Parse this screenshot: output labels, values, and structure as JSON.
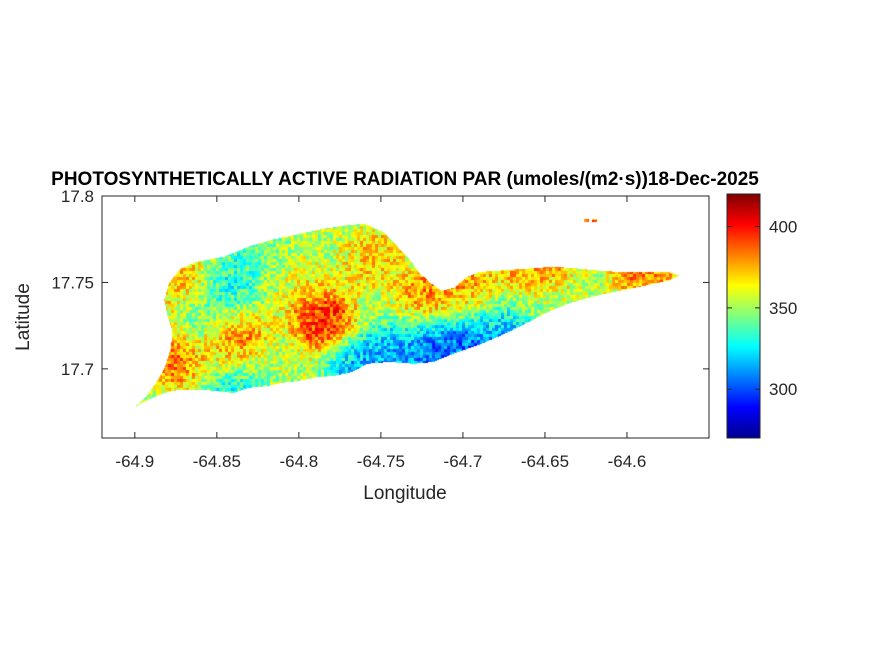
{
  "chart_data": {
    "type": "heatmap",
    "title": "PHOTOSYNTHETICALLY ACTIVE RADIATION PAR (umoles/(m2·s))18-Dec-2025",
    "xlabel": "Longitude",
    "ylabel": "Latitude",
    "xlim": [
      -64.92,
      -64.55
    ],
    "ylim": [
      17.66,
      17.8
    ],
    "xticks": [
      -64.9,
      -64.85,
      -64.8,
      -64.75,
      -64.7,
      -64.65,
      -64.6
    ],
    "xtick_labels": [
      "-64.9",
      "-64.85",
      "-64.8",
      "-64.75",
      "-64.7",
      "-64.65",
      "-64.6"
    ],
    "yticks": [
      17.7,
      17.75,
      17.8
    ],
    "ytick_labels": [
      "17.7",
      "17.75",
      "17.8"
    ],
    "colorbar": {
      "colormap": "jet",
      "range": [
        270,
        420
      ],
      "ticks": [
        300,
        350,
        400
      ],
      "tick_labels": [
        "300",
        "350",
        "400"
      ]
    },
    "island_outline": [
      [
        -64.9,
        17.678
      ],
      [
        -64.893,
        17.684
      ],
      [
        -64.887,
        17.692
      ],
      [
        -64.882,
        17.7
      ],
      [
        -64.878,
        17.712
      ],
      [
        -64.877,
        17.722
      ],
      [
        -64.88,
        17.73
      ],
      [
        -64.882,
        17.74
      ],
      [
        -64.879,
        17.75
      ],
      [
        -64.872,
        17.758
      ],
      [
        -64.862,
        17.762
      ],
      [
        -64.845,
        17.765
      ],
      [
        -64.83,
        17.771
      ],
      [
        -64.815,
        17.775
      ],
      [
        -64.8,
        17.778
      ],
      [
        -64.785,
        17.781
      ],
      [
        -64.772,
        17.783
      ],
      [
        -64.76,
        17.784
      ],
      [
        -64.748,
        17.779
      ],
      [
        -64.74,
        17.771
      ],
      [
        -64.733,
        17.764
      ],
      [
        -64.727,
        17.756
      ],
      [
        -64.72,
        17.75
      ],
      [
        -64.713,
        17.745
      ],
      [
        -64.705,
        17.747
      ],
      [
        -64.698,
        17.753
      ],
      [
        -64.69,
        17.756
      ],
      [
        -64.675,
        17.757
      ],
      [
        -64.66,
        17.758
      ],
      [
        -64.645,
        17.759
      ],
      [
        -64.63,
        17.758
      ],
      [
        -64.62,
        17.757
      ],
      [
        -64.605,
        17.756
      ],
      [
        -64.59,
        17.756
      ],
      [
        -64.575,
        17.756
      ],
      [
        -64.568,
        17.754
      ],
      [
        -64.575,
        17.751
      ],
      [
        -64.59,
        17.748
      ],
      [
        -64.605,
        17.745
      ],
      [
        -64.62,
        17.742
      ],
      [
        -64.635,
        17.738
      ],
      [
        -64.648,
        17.733
      ],
      [
        -64.66,
        17.727
      ],
      [
        -64.675,
        17.72
      ],
      [
        -64.69,
        17.714
      ],
      [
        -64.705,
        17.709
      ],
      [
        -64.718,
        17.704
      ],
      [
        -64.73,
        17.703
      ],
      [
        -64.745,
        17.704
      ],
      [
        -64.758,
        17.703
      ],
      [
        -64.768,
        17.698
      ],
      [
        -64.778,
        17.696
      ],
      [
        -64.79,
        17.695
      ],
      [
        -64.8,
        17.693
      ],
      [
        -64.81,
        17.692
      ],
      [
        -64.82,
        17.69
      ],
      [
        -64.83,
        17.689
      ],
      [
        -64.84,
        17.686
      ],
      [
        -64.85,
        17.687
      ],
      [
        -64.86,
        17.688
      ],
      [
        -64.872,
        17.688
      ],
      [
        -64.882,
        17.686
      ],
      [
        -64.892,
        17.682
      ]
    ],
    "island_pixels": [
      [
        -64.9,
        17.678
      ],
      [
        -64.895,
        17.681
      ],
      [
        -64.89,
        17.685
      ]
    ],
    "cays": [
      [
        -64.625,
        17.786
      ],
      [
        -64.62,
        17.786
      ]
    ],
    "hotspots": [
      {
        "lon": -64.785,
        "lat": 17.727,
        "value": 410
      },
      {
        "lon": -64.842,
        "lat": 17.718,
        "value": 405
      },
      {
        "lon": -64.876,
        "lat": 17.708,
        "value": 400
      },
      {
        "lon": -64.72,
        "lat": 17.74,
        "value": 395
      },
      {
        "lon": -64.655,
        "lat": 17.755,
        "value": 395
      },
      {
        "lon": -64.59,
        "lat": 17.756,
        "value": 392
      },
      {
        "lon": -64.695,
        "lat": 17.743,
        "value": 385
      },
      {
        "lon": -64.873,
        "lat": 17.75,
        "value": 385
      },
      {
        "lon": -64.755,
        "lat": 17.765,
        "value": 375
      },
      {
        "lon": -64.81,
        "lat": 17.752,
        "value": 370
      },
      {
        "lon": -64.62,
        "lat": 17.787,
        "value": 395
      }
    ],
    "coldspots": [
      {
        "lon": -64.7,
        "lat": 17.717,
        "value": 285
      },
      {
        "lon": -64.72,
        "lat": 17.712,
        "value": 290
      },
      {
        "lon": -64.675,
        "lat": 17.722,
        "value": 305
      },
      {
        "lon": -64.745,
        "lat": 17.708,
        "value": 310
      },
      {
        "lon": -64.765,
        "lat": 17.7,
        "value": 300
      },
      {
        "lon": -64.84,
        "lat": 17.748,
        "value": 318
      },
      {
        "lon": -64.86,
        "lat": 17.727,
        "value": 322
      },
      {
        "lon": -64.82,
        "lat": 17.76,
        "value": 335
      },
      {
        "lon": -64.84,
        "lat": 17.69,
        "value": 320
      },
      {
        "lon": -64.65,
        "lat": 17.738,
        "value": 340
      }
    ],
    "base_value": 352
  }
}
